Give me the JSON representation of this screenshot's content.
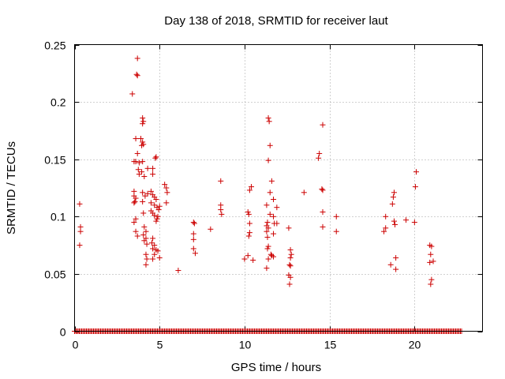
{
  "chart_data": {
    "type": "scatter",
    "title": "Day 138 of 2018, SRMTID for receiver laut",
    "xlabel": "GPS time / hours",
    "ylabel": "SRMTID / TECUs",
    "xlim": [
      0,
      24
    ],
    "ylim": [
      0,
      0.25
    ],
    "xticks": [
      0,
      5,
      10,
      15,
      20
    ],
    "xtick_labels": [
      "0",
      "5",
      "10",
      "15",
      "20"
    ],
    "yticks": [
      0,
      0.05,
      0.1,
      0.15,
      0.2,
      0.25
    ],
    "ytick_labels": [
      "0",
      "0.05",
      "0.1",
      "0.15",
      "0.2",
      "0.25"
    ],
    "grid": true,
    "marker": "+",
    "series": [
      {
        "name": "SRMTID",
        "color": "#cc0000",
        "points": [
          [
            0.3,
            0.111
          ],
          [
            0.35,
            0.091
          ],
          [
            0.35,
            0.087
          ],
          [
            0.3,
            0.075
          ],
          [
            3.4,
            0.207
          ],
          [
            3.7,
            0.238
          ],
          [
            3.65,
            0.224
          ],
          [
            3.7,
            0.223
          ],
          [
            3.6,
            0.168
          ],
          [
            3.5,
            0.148
          ],
          [
            3.6,
            0.148
          ],
          [
            3.7,
            0.155
          ],
          [
            3.8,
            0.147
          ],
          [
            3.75,
            0.141
          ],
          [
            3.8,
            0.137
          ],
          [
            3.5,
            0.122
          ],
          [
            3.5,
            0.118
          ],
          [
            3.6,
            0.116
          ],
          [
            3.5,
            0.112
          ],
          [
            3.6,
            0.098
          ],
          [
            3.6,
            0.087
          ],
          [
            3.7,
            0.083
          ],
          [
            3.5,
            0.095
          ],
          [
            3.55,
            0.113
          ],
          [
            4.0,
            0.186
          ],
          [
            4.05,
            0.183
          ],
          [
            4.0,
            0.181
          ],
          [
            3.9,
            0.168
          ],
          [
            4.0,
            0.165
          ],
          [
            4.05,
            0.163
          ],
          [
            3.95,
            0.162
          ],
          [
            4.0,
            0.148
          ],
          [
            3.95,
            0.139
          ],
          [
            4.1,
            0.135
          ],
          [
            4.0,
            0.121
          ],
          [
            4.15,
            0.118
          ],
          [
            4.0,
            0.113
          ],
          [
            4.05,
            0.103
          ],
          [
            4.1,
            0.091
          ],
          [
            4.2,
            0.087
          ],
          [
            4.05,
            0.084
          ],
          [
            4.2,
            0.081
          ],
          [
            4.1,
            0.079
          ],
          [
            4.25,
            0.076
          ],
          [
            4.2,
            0.067
          ],
          [
            4.25,
            0.063
          ],
          [
            4.2,
            0.058
          ],
          [
            4.3,
            0.142
          ],
          [
            4.3,
            0.12
          ],
          [
            4.6,
            0.142
          ],
          [
            4.6,
            0.137
          ],
          [
            4.8,
            0.152
          ],
          [
            4.75,
            0.151
          ],
          [
            4.5,
            0.122
          ],
          [
            4.6,
            0.119
          ],
          [
            4.7,
            0.117
          ],
          [
            4.8,
            0.115
          ],
          [
            4.5,
            0.112
          ],
          [
            4.7,
            0.11
          ],
          [
            4.85,
            0.108
          ],
          [
            4.95,
            0.106
          ],
          [
            4.5,
            0.105
          ],
          [
            4.6,
            0.103
          ],
          [
            4.7,
            0.101
          ],
          [
            4.85,
            0.098
          ],
          [
            4.8,
            0.096
          ],
          [
            4.6,
            0.081
          ],
          [
            4.55,
            0.077
          ],
          [
            4.7,
            0.075
          ],
          [
            4.6,
            0.072
          ],
          [
            4.8,
            0.071
          ],
          [
            4.9,
            0.07
          ],
          [
            4.7,
            0.067
          ],
          [
            4.6,
            0.063
          ],
          [
            5.0,
            0.064
          ],
          [
            4.9,
            0.1
          ],
          [
            5.0,
            0.109
          ],
          [
            5.3,
            0.128
          ],
          [
            5.4,
            0.125
          ],
          [
            5.45,
            0.121
          ],
          [
            5.4,
            0.112
          ],
          [
            6.1,
            0.053
          ],
          [
            7.0,
            0.095
          ],
          [
            7.0,
            0.085
          ],
          [
            7.0,
            0.08
          ],
          [
            7.0,
            0.072
          ],
          [
            7.1,
            0.068
          ],
          [
            7.05,
            0.094
          ],
          [
            8.6,
            0.131
          ],
          [
            8.6,
            0.11
          ],
          [
            8.6,
            0.106
          ],
          [
            8.65,
            0.102
          ],
          [
            8.0,
            0.089
          ],
          [
            10.2,
            0.104
          ],
          [
            10.25,
            0.102
          ],
          [
            10.4,
            0.126
          ],
          [
            10.3,
            0.123
          ],
          [
            10.3,
            0.094
          ],
          [
            10.3,
            0.086
          ],
          [
            10.25,
            0.083
          ],
          [
            10.0,
            0.063
          ],
          [
            10.2,
            0.066
          ],
          [
            10.5,
            0.062
          ],
          [
            11.4,
            0.186
          ],
          [
            11.45,
            0.183
          ],
          [
            11.5,
            0.162
          ],
          [
            11.4,
            0.149
          ],
          [
            11.6,
            0.131
          ],
          [
            11.5,
            0.121
          ],
          [
            11.7,
            0.115
          ],
          [
            11.9,
            0.108
          ],
          [
            11.3,
            0.11
          ],
          [
            11.5,
            0.102
          ],
          [
            11.35,
            0.095
          ],
          [
            11.3,
            0.092
          ],
          [
            11.4,
            0.09
          ],
          [
            11.3,
            0.087
          ],
          [
            11.35,
            0.082
          ],
          [
            11.7,
            0.085
          ],
          [
            11.75,
            0.094
          ],
          [
            11.9,
            0.094
          ],
          [
            11.4,
            0.074
          ],
          [
            11.35,
            0.072
          ],
          [
            11.4,
            0.063
          ],
          [
            11.3,
            0.055
          ],
          [
            11.6,
            0.066
          ],
          [
            11.7,
            0.065
          ],
          [
            11.55,
            0.067
          ],
          [
            11.7,
            0.1
          ],
          [
            12.6,
            0.09
          ],
          [
            12.7,
            0.071
          ],
          [
            12.75,
            0.067
          ],
          [
            12.7,
            0.064
          ],
          [
            12.65,
            0.058
          ],
          [
            12.7,
            0.057
          ],
          [
            12.6,
            0.049
          ],
          [
            12.7,
            0.047
          ],
          [
            12.65,
            0.041
          ],
          [
            13.5,
            0.121
          ],
          [
            14.4,
            0.155
          ],
          [
            14.35,
            0.151
          ],
          [
            14.6,
            0.18
          ],
          [
            14.55,
            0.124
          ],
          [
            14.6,
            0.123
          ],
          [
            14.6,
            0.104
          ],
          [
            14.6,
            0.091
          ],
          [
            15.4,
            0.1
          ],
          [
            15.4,
            0.087
          ],
          [
            18.3,
            0.1
          ],
          [
            18.3,
            0.09
          ],
          [
            18.2,
            0.087
          ],
          [
            18.6,
            0.058
          ],
          [
            18.8,
            0.121
          ],
          [
            18.75,
            0.117
          ],
          [
            18.7,
            0.111
          ],
          [
            18.8,
            0.096
          ],
          [
            18.85,
            0.093
          ],
          [
            18.9,
            0.064
          ],
          [
            18.9,
            0.054
          ],
          [
            19.5,
            0.097
          ],
          [
            20.1,
            0.139
          ],
          [
            20.05,
            0.126
          ],
          [
            20.0,
            0.095
          ],
          [
            20.9,
            0.075
          ],
          [
            21.0,
            0.074
          ],
          [
            20.95,
            0.067
          ],
          [
            21.1,
            0.061
          ],
          [
            20.9,
            0.06
          ],
          [
            21.0,
            0.045
          ],
          [
            20.95,
            0.041
          ]
        ],
        "zero_runs": [
          [
            0.0,
            22.8
          ]
        ]
      }
    ]
  }
}
